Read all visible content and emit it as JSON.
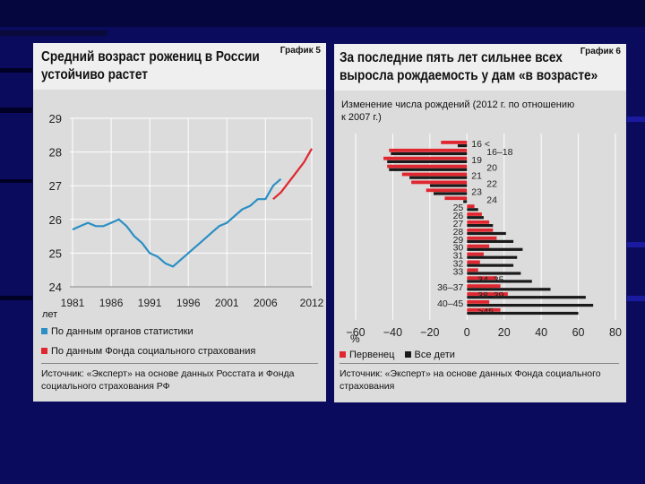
{
  "colors": {
    "blue": "#2a8fc4",
    "red": "#e0262e",
    "black": "#1a1a1a"
  },
  "chart5": {
    "badge": "График 5",
    "title_line1": "Средний возраст рожениц в России",
    "title_line2": "устойчиво растет",
    "unit": "лет",
    "legend1": "По данным органов статистики",
    "legend2": "По данным Фонда социального страхования",
    "source_line1": "Источник: «Эксперт» на основе данных Росстата и Фонда",
    "source_line2": "социального страхования РФ"
  },
  "chart6": {
    "badge": "График 6",
    "title_line1": "За последние пять лет сильнее всех",
    "title_line2": "выросла рождаемость у дам «в возрасте»",
    "subtitle_line1": "Изменение числа рождений (2012 г. по отношению",
    "subtitle_line2": "к 2007 г.)",
    "unit": "%",
    "legend1": "Первенец",
    "legend2": "Все дети",
    "source_line1": "Источник: «Эксперт» на основе данных Фонда социального",
    "source_line2": "страхования"
  },
  "chart_data": [
    {
      "type": "line",
      "title": "Средний возраст рожениц в России устойчиво растет",
      "ylabel": "лет",
      "xlim": [
        1981,
        2012
      ],
      "ylim": [
        24,
        29
      ],
      "xticks": [
        1981,
        1986,
        1991,
        1996,
        2001,
        2006,
        2012
      ],
      "yticks": [
        24,
        25,
        26,
        27,
        28,
        29
      ],
      "series": [
        {
          "name": "По данным органов статистики",
          "x": [
            1981,
            1982,
            1983,
            1984,
            1985,
            1986,
            1987,
            1988,
            1989,
            1990,
            1991,
            1992,
            1993,
            1994,
            1995,
            1996,
            1997,
            1998,
            1999,
            2000,
            2001,
            2002,
            2003,
            2004,
            2005,
            2006,
            2007,
            2008
          ],
          "values": [
            25.7,
            25.8,
            25.9,
            25.8,
            25.8,
            25.9,
            26.0,
            25.8,
            25.5,
            25.3,
            25.0,
            24.9,
            24.7,
            24.6,
            24.8,
            25.0,
            25.2,
            25.4,
            25.6,
            25.8,
            25.9,
            26.1,
            26.3,
            26.4,
            26.6,
            26.6,
            27.0,
            27.2
          ]
        },
        {
          "name": "По данным Фонда социального страхования",
          "x": [
            2007,
            2008,
            2009,
            2010,
            2011,
            2012
          ],
          "values": [
            26.6,
            26.8,
            27.1,
            27.4,
            27.7,
            28.1
          ]
        }
      ]
    },
    {
      "type": "bar",
      "orientation": "horizontal",
      "title": "За последние пять лет сильнее всех выросла рождаемость у дам «в возрасте»",
      "xlabel": "%",
      "xlim": [
        -60,
        80
      ],
      "xticks": [
        -60,
        -40,
        -20,
        0,
        20,
        40,
        60,
        80
      ],
      "categories": [
        "16 <",
        "16–18",
        "19",
        "20",
        "21",
        "22",
        "23",
        "24",
        "25",
        "26",
        "27",
        "28",
        "29",
        "30",
        "31",
        "32",
        "33",
        "34–35",
        "36–37",
        "38–39",
        "40–45",
        ">45"
      ],
      "series": [
        {
          "name": "Первенец",
          "values": [
            -14,
            -42,
            -45,
            -43,
            -35,
            -30,
            -22,
            -12,
            4,
            8,
            12,
            14,
            16,
            12,
            9,
            7,
            6,
            16,
            18,
            22,
            12,
            18
          ]
        },
        {
          "name": "Все дети",
          "values": [
            -5,
            -41,
            -43,
            -42,
            -31,
            -20,
            -18,
            -2,
            6,
            9,
            14,
            21,
            25,
            30,
            27,
            25,
            29,
            35,
            45,
            64,
            68,
            60
          ]
        }
      ]
    }
  ]
}
